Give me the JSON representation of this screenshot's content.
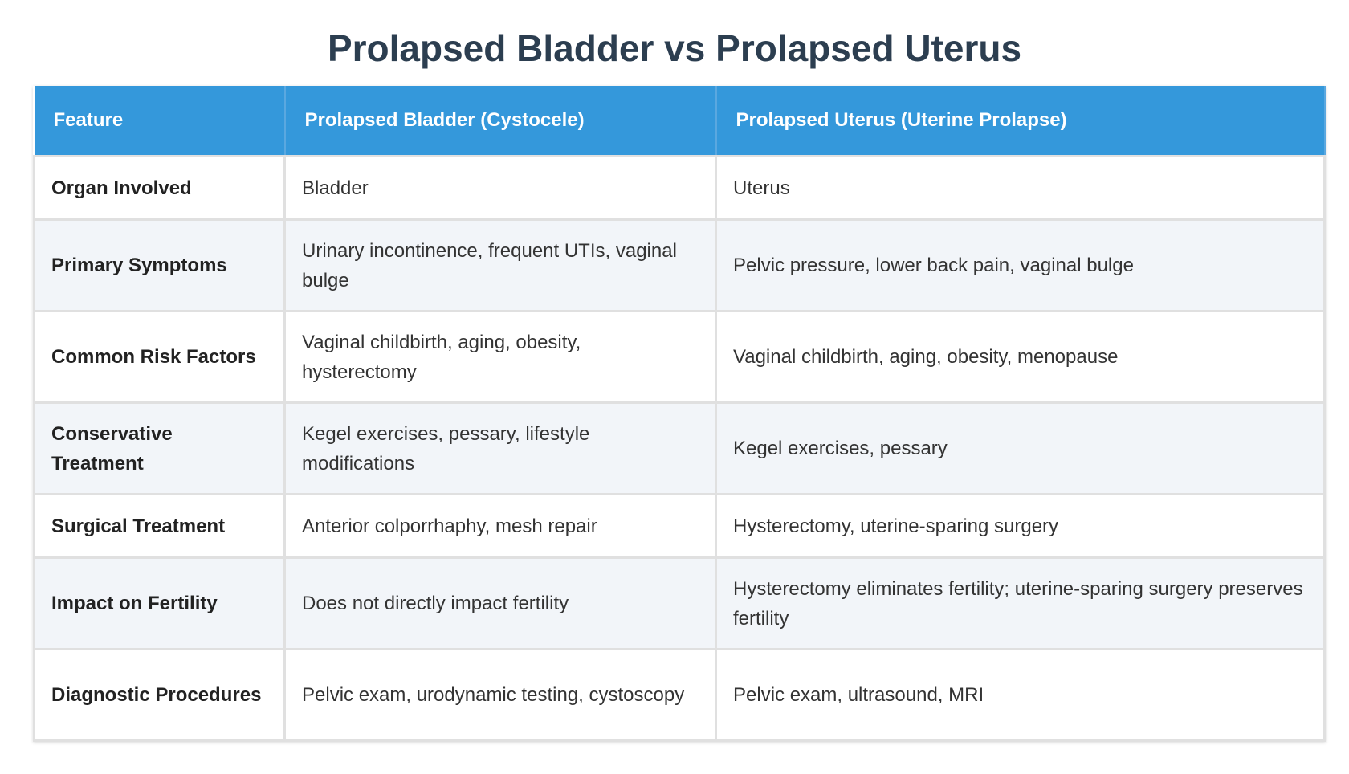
{
  "header": {
    "title": "Prolapsed Bladder vs Prolapsed Uterus"
  },
  "table": {
    "columns": [
      "Feature",
      "Prolapsed Bladder (Cystocele)",
      "Prolapsed Uterus (Uterine Prolapse)"
    ],
    "rows": [
      [
        "Organ Involved",
        "Bladder",
        "Uterus"
      ],
      [
        "Primary Symptoms",
        "Urinary incontinence, frequent UTIs, vaginal bulge",
        "Pelvic pressure, lower back pain, vaginal bulge"
      ],
      [
        "Common Risk Factors",
        "Vaginal childbirth, aging, obesity, hysterectomy",
        "Vaginal childbirth, aging, obesity, menopause"
      ],
      [
        "Conservative Treatment",
        "Kegel exercises, pessary, lifestyle modifications",
        "Kegel exercises, pessary"
      ],
      [
        "Surgical Treatment",
        "Anterior colporrhaphy, mesh repair",
        "Hysterectomy, uterine-sparing surgery"
      ],
      [
        "Impact on Fertility",
        "Does not directly impact fertility",
        "Hysterectomy eliminates fertility; uterine-sparing surgery preserves fertility"
      ],
      [
        "Diagnostic Procedures",
        "Pelvic exam, urodynamic testing, cystoscopy",
        "Pelvic exam, ultrasound, MRI"
      ]
    ]
  }
}
